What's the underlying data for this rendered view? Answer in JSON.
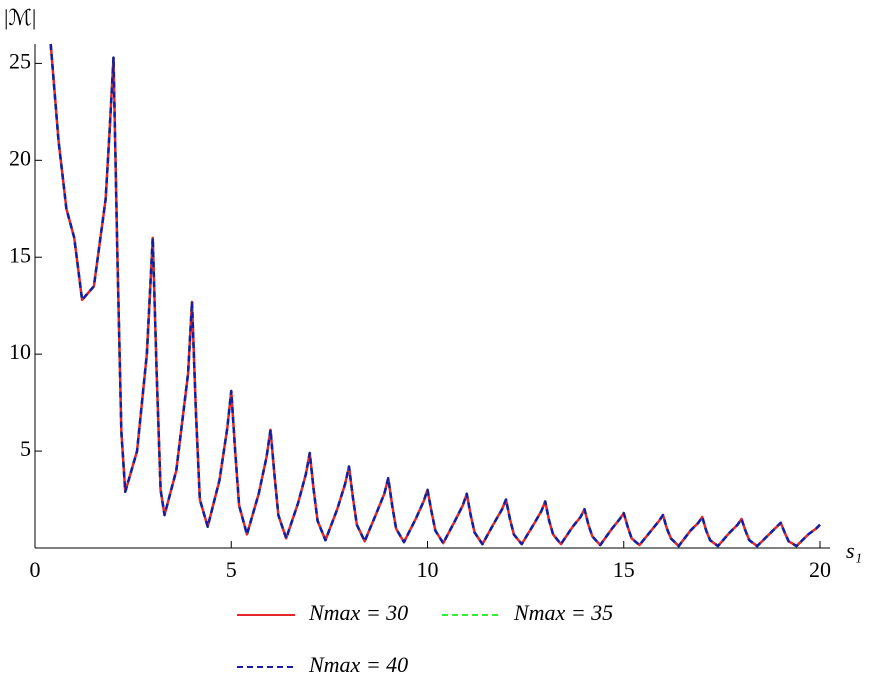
{
  "chart_data": {
    "type": "line",
    "xlabel": "s₁",
    "ylabel": "|ℳ|",
    "x": [
      0.4,
      0.6,
      0.8,
      1.0,
      1.2,
      1.5,
      1.8,
      1.9,
      2.0,
      2.1,
      2.2,
      2.3,
      2.6,
      2.85,
      3.0,
      3.1,
      3.2,
      3.3,
      3.6,
      3.9,
      4.0,
      4.1,
      4.2,
      4.4,
      4.7,
      4.9,
      5.0,
      5.1,
      5.2,
      5.4,
      5.7,
      5.9,
      6.0,
      6.1,
      6.2,
      6.4,
      6.7,
      6.9,
      7.0,
      7.1,
      7.2,
      7.4,
      7.7,
      7.9,
      8.0,
      8.1,
      8.2,
      8.4,
      8.7,
      8.9,
      9.0,
      9.1,
      9.2,
      9.4,
      9.7,
      9.9,
      10.0,
      10.1,
      10.2,
      10.4,
      10.7,
      10.9,
      11.0,
      11.1,
      11.2,
      11.4,
      11.7,
      11.9,
      12.0,
      12.1,
      12.2,
      12.4,
      12.7,
      12.9,
      13.0,
      13.1,
      13.2,
      13.4,
      13.7,
      13.9,
      14.0,
      14.1,
      14.2,
      14.4,
      14.7,
      14.9,
      15.0,
      15.1,
      15.2,
      15.4,
      15.7,
      15.9,
      16.0,
      16.1,
      16.2,
      16.4,
      16.7,
      16.9,
      17.0,
      17.1,
      17.2,
      17.4,
      17.7,
      17.9,
      18.0,
      18.1,
      18.2,
      18.4,
      18.7,
      18.9,
      19.0,
      19.1,
      19.2,
      19.4,
      19.7,
      19.9,
      20.0
    ],
    "series": [
      {
        "name": "Nmax = 30",
        "color": "#e8262a",
        "style": "solid",
        "values": [
          26,
          21,
          17.5,
          16,
          12.8,
          13.5,
          18,
          21.5,
          25.3,
          15,
          6,
          2.9,
          5,
          10,
          16,
          9,
          3,
          1.7,
          4,
          9,
          12.7,
          7,
          2.5,
          1.1,
          3.5,
          6.2,
          8.1,
          5.0,
          2.2,
          0.7,
          2.8,
          4.7,
          6.1,
          3.8,
          1.7,
          0.5,
          2.3,
          3.8,
          4.9,
          3.0,
          1.4,
          0.4,
          2.0,
          3.3,
          4.2,
          2.6,
          1.2,
          0.35,
          1.8,
          2.8,
          3.6,
          2.2,
          1.0,
          0.3,
          1.5,
          2.4,
          3.0,
          1.9,
          0.9,
          0.25,
          1.4,
          2.2,
          2.8,
          1.7,
          0.8,
          0.2,
          1.3,
          2.0,
          2.5,
          1.5,
          0.7,
          0.2,
          1.2,
          1.9,
          2.4,
          1.4,
          0.7,
          0.2,
          1.1,
          1.6,
          2.0,
          1.2,
          0.6,
          0.15,
          1.0,
          1.5,
          1.8,
          1.1,
          0.5,
          0.15,
          0.9,
          1.4,
          1.7,
          1.0,
          0.5,
          0.1,
          0.9,
          1.3,
          1.6,
          0.9,
          0.4,
          0.1,
          0.8,
          1.2,
          1.5,
          0.9,
          0.4,
          0.1,
          0.7,
          1.1,
          1.3,
          0.8,
          0.35,
          0.1,
          0.7,
          1.0,
          1.2
        ]
      },
      {
        "name": "Nmax = 35",
        "color": "#33ee33",
        "style": "dashed",
        "values": [
          26,
          21,
          17.5,
          16,
          12.8,
          13.5,
          18,
          21.5,
          25.3,
          15,
          6,
          2.9,
          5,
          10,
          16,
          9,
          3,
          1.7,
          4,
          9,
          12.7,
          7,
          2.5,
          1.1,
          3.5,
          6.2,
          8.1,
          5.0,
          2.2,
          0.7,
          2.8,
          4.7,
          6.1,
          3.8,
          1.7,
          0.5,
          2.3,
          3.8,
          4.9,
          3.0,
          1.4,
          0.4,
          2.0,
          3.3,
          4.2,
          2.6,
          1.2,
          0.35,
          1.8,
          2.8,
          3.6,
          2.2,
          1.0,
          0.3,
          1.5,
          2.4,
          3.0,
          1.9,
          0.9,
          0.25,
          1.4,
          2.2,
          2.8,
          1.7,
          0.8,
          0.2,
          1.3,
          2.0,
          2.5,
          1.5,
          0.7,
          0.2,
          1.2,
          1.9,
          2.4,
          1.4,
          0.7,
          0.2,
          1.1,
          1.6,
          2.0,
          1.2,
          0.6,
          0.15,
          1.0,
          1.5,
          1.8,
          1.1,
          0.5,
          0.15,
          0.9,
          1.4,
          1.7,
          1.0,
          0.5,
          0.1,
          0.9,
          1.3,
          1.6,
          0.9,
          0.4,
          0.1,
          0.8,
          1.2,
          1.5,
          0.9,
          0.4,
          0.1,
          0.7,
          1.1,
          1.3,
          0.8,
          0.35,
          0.1,
          0.7,
          1.0,
          1.2
        ]
      },
      {
        "name": "Nmax = 40",
        "color": "#1a1aa8",
        "style": "dashed",
        "values": [
          26,
          21,
          17.5,
          16,
          12.8,
          13.5,
          18,
          21.5,
          25.3,
          15,
          6,
          2.9,
          5,
          10,
          16,
          9,
          3,
          1.7,
          4,
          9,
          12.7,
          7,
          2.5,
          1.1,
          3.5,
          6.2,
          8.1,
          5.0,
          2.2,
          0.7,
          2.8,
          4.7,
          6.1,
          3.8,
          1.7,
          0.5,
          2.3,
          3.8,
          4.9,
          3.0,
          1.4,
          0.4,
          2.0,
          3.3,
          4.2,
          2.6,
          1.2,
          0.35,
          1.8,
          2.8,
          3.6,
          2.2,
          1.0,
          0.3,
          1.5,
          2.4,
          3.0,
          1.9,
          0.9,
          0.25,
          1.4,
          2.2,
          2.8,
          1.7,
          0.8,
          0.2,
          1.3,
          2.0,
          2.5,
          1.5,
          0.7,
          0.2,
          1.2,
          1.9,
          2.4,
          1.4,
          0.7,
          0.2,
          1.1,
          1.6,
          2.0,
          1.2,
          0.6,
          0.15,
          1.0,
          1.5,
          1.8,
          1.1,
          0.5,
          0.15,
          0.9,
          1.4,
          1.7,
          1.0,
          0.5,
          0.1,
          0.9,
          1.3,
          1.6,
          0.9,
          0.4,
          0.1,
          0.8,
          1.2,
          1.5,
          0.9,
          0.4,
          0.1,
          0.7,
          1.1,
          1.3,
          0.8,
          0.35,
          0.1,
          0.7,
          1.0,
          1.2
        ]
      }
    ],
    "xlim": [
      0,
      20
    ],
    "ylim": [
      0,
      26
    ],
    "xticks": [
      0,
      5,
      10,
      15,
      20
    ],
    "yticks": [
      5,
      10,
      15,
      20,
      25
    ]
  }
}
